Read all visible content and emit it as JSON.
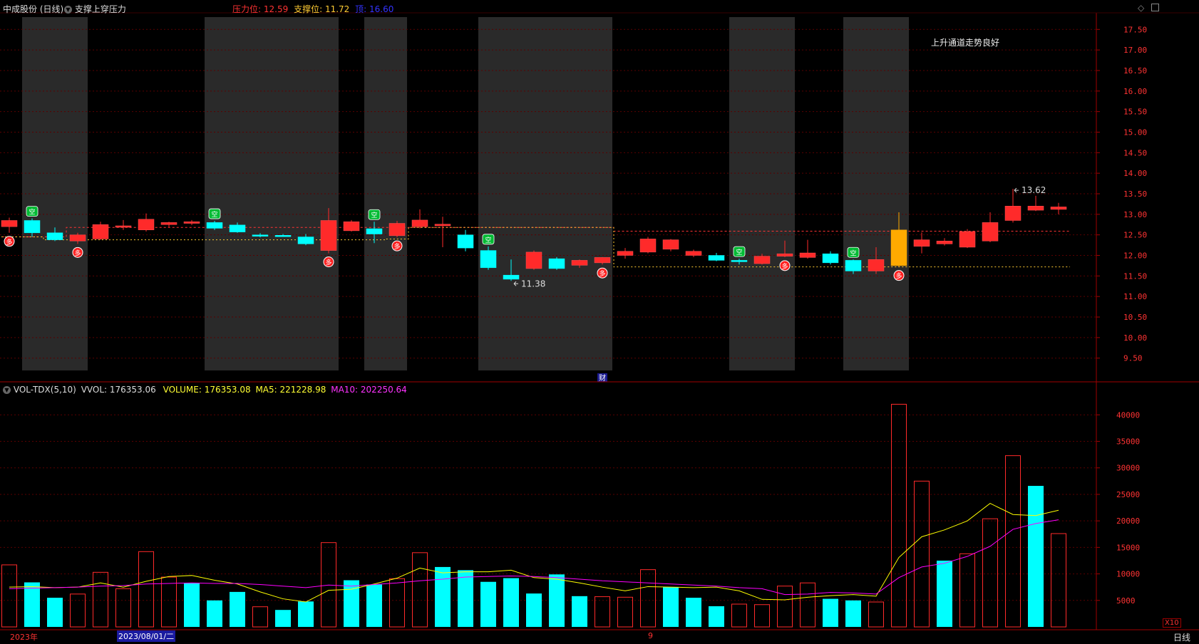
{
  "header": {
    "stock_name": "中成股份 (日线)",
    "indicator_name": "支撑上穿压力",
    "pressure_label": "压力位:",
    "pressure_value": "12.59",
    "support_label": "支撑位:",
    "support_value": "11.72",
    "top_label": "顶:",
    "top_value": "16.60",
    "channel_note": "上升通道走势良好"
  },
  "volume_header": {
    "indicator": "VOL-TDX(5,10)",
    "vvol": "VVOL: 176353.06",
    "volume": "VOLUME: 176353.08",
    "ma5": "MA5: 221228.98",
    "ma10": "MA10: 202250.64"
  },
  "footer": {
    "year_label": "2023年",
    "date_label": "2023/08/01/二",
    "month_label": "9",
    "scale_label": "X10",
    "period_label": "日线"
  },
  "colors": {
    "up": "#ff2a2a",
    "down": "#00ffff",
    "highlight": "#ffaa00",
    "ma5": "#ffff00",
    "ma10": "#ff00ff",
    "shade": "#2a2a2a",
    "axis": "#a00000",
    "pressure_color": "#ff3333",
    "support_color": "#ffcc33",
    "top_color": "#3333ff"
  },
  "chart_data": [
    {
      "type": "candlestick",
      "title": "中成股份 (日线)",
      "ylim": [
        9.2,
        17.8
      ],
      "y_ticks": [
        "9.50",
        "10.00",
        "10.50",
        "11.00",
        "11.50",
        "12.00",
        "12.50",
        "13.00",
        "13.50",
        "14.00",
        "14.50",
        "15.00",
        "15.50",
        "16.00",
        "16.50",
        "17.00",
        "17.50"
      ],
      "candles": [
        {
          "o": 12.7,
          "h": 12.92,
          "l": 12.55,
          "c": 12.85
        },
        {
          "o": 12.85,
          "h": 12.9,
          "l": 12.45,
          "c": 12.55
        },
        {
          "o": 12.55,
          "h": 12.68,
          "l": 12.35,
          "c": 12.38
        },
        {
          "o": 12.35,
          "h": 12.55,
          "l": 12.28,
          "c": 12.5
        },
        {
          "o": 12.4,
          "h": 12.82,
          "l": 12.38,
          "c": 12.75
        },
        {
          "o": 12.7,
          "h": 12.86,
          "l": 12.62,
          "c": 12.72
        },
        {
          "o": 12.62,
          "h": 13.02,
          "l": 12.58,
          "c": 12.88
        },
        {
          "o": 12.75,
          "h": 12.82,
          "l": 12.68,
          "c": 12.8
        },
        {
          "o": 12.78,
          "h": 12.86,
          "l": 12.74,
          "c": 12.82
        },
        {
          "o": 12.8,
          "h": 12.84,
          "l": 12.62,
          "c": 12.66
        },
        {
          "o": 12.74,
          "h": 12.8,
          "l": 12.55,
          "c": 12.57
        },
        {
          "o": 12.5,
          "h": 12.54,
          "l": 12.44,
          "c": 12.47
        },
        {
          "o": 12.49,
          "h": 12.52,
          "l": 12.45,
          "c": 12.47
        },
        {
          "o": 12.45,
          "h": 12.52,
          "l": 12.25,
          "c": 12.28
        },
        {
          "o": 12.12,
          "h": 13.15,
          "l": 12.05,
          "c": 12.85
        },
        {
          "o": 12.6,
          "h": 12.86,
          "l": 12.58,
          "c": 12.82
        },
        {
          "o": 12.65,
          "h": 12.82,
          "l": 12.3,
          "c": 12.52
        },
        {
          "o": 12.48,
          "h": 12.84,
          "l": 12.44,
          "c": 12.78
        },
        {
          "o": 12.7,
          "h": 13.12,
          "l": 12.66,
          "c": 12.86
        },
        {
          "o": 12.72,
          "h": 12.94,
          "l": 12.2,
          "c": 12.76
        },
        {
          "o": 12.5,
          "h": 12.62,
          "l": 12.1,
          "c": 12.18
        },
        {
          "o": 12.12,
          "h": 12.22,
          "l": 11.65,
          "c": 11.7
        },
        {
          "o": 11.52,
          "h": 11.9,
          "l": 11.38,
          "c": 11.42
        },
        {
          "o": 11.68,
          "h": 12.12,
          "l": 11.65,
          "c": 12.08
        },
        {
          "o": 11.92,
          "h": 11.96,
          "l": 11.65,
          "c": 11.68
        },
        {
          "o": 11.76,
          "h": 11.9,
          "l": 11.7,
          "c": 11.88
        },
        {
          "o": 11.82,
          "h": 11.96,
          "l": 11.78,
          "c": 11.95
        },
        {
          "o": 12.0,
          "h": 12.18,
          "l": 11.92,
          "c": 12.1
        },
        {
          "o": 12.08,
          "h": 12.45,
          "l": 12.05,
          "c": 12.4
        },
        {
          "o": 12.15,
          "h": 12.4,
          "l": 12.1,
          "c": 12.38
        },
        {
          "o": 12.0,
          "h": 12.14,
          "l": 11.96,
          "c": 12.1
        },
        {
          "o": 12.0,
          "h": 12.06,
          "l": 11.86,
          "c": 11.88
        },
        {
          "o": 11.88,
          "h": 11.92,
          "l": 11.78,
          "c": 11.85
        },
        {
          "o": 11.8,
          "h": 12.04,
          "l": 11.78,
          "c": 11.98
        },
        {
          "o": 11.98,
          "h": 12.36,
          "l": 11.96,
          "c": 12.04
        },
        {
          "o": 11.95,
          "h": 12.38,
          "l": 11.92,
          "c": 12.06
        },
        {
          "o": 12.04,
          "h": 12.1,
          "l": 11.78,
          "c": 11.82
        },
        {
          "o": 11.88,
          "h": 11.9,
          "l": 11.55,
          "c": 11.62
        },
        {
          "o": 11.62,
          "h": 12.2,
          "l": 11.55,
          "c": 11.9
        },
        {
          "o": 11.75,
          "h": 13.05,
          "l": 11.72,
          "c": 12.62
        },
        {
          "o": 12.22,
          "h": 12.56,
          "l": 12.05,
          "c": 12.38
        },
        {
          "o": 12.28,
          "h": 12.42,
          "l": 12.24,
          "c": 12.35
        },
        {
          "o": 12.2,
          "h": 12.64,
          "l": 12.18,
          "c": 12.58
        },
        {
          "o": 12.35,
          "h": 13.05,
          "l": 12.32,
          "c": 12.8
        },
        {
          "o": 12.85,
          "h": 13.62,
          "l": 12.8,
          "c": 13.2
        },
        {
          "o": 13.1,
          "h": 13.45,
          "l": 13.08,
          "c": 13.2
        },
        {
          "o": 13.12,
          "h": 13.28,
          "l": 13.0,
          "c": 13.18
        }
      ],
      "highlight_index": 39,
      "up_markers": [
        0,
        3,
        14,
        17,
        26,
        34,
        39
      ],
      "up_marker_text": "多",
      "down_markers": [
        1,
        9,
        16,
        21,
        32,
        37
      ],
      "down_marker_text": "空",
      "finance_marker": {
        "index": 26,
        "text": "财"
      },
      "pressure_line": [
        12.45,
        12.45,
        12.45,
        12.68,
        12.68,
        12.68,
        12.68,
        12.68,
        12.68,
        12.68,
        12.68,
        12.68,
        12.68,
        12.68,
        12.68,
        12.68,
        12.68,
        12.68,
        12.68,
        12.68,
        12.68,
        12.68,
        12.68,
        12.68,
        12.68,
        12.68,
        12.68,
        12.59,
        12.59,
        12.59,
        12.59,
        12.59,
        12.59,
        12.59,
        12.59,
        12.59,
        12.59,
        12.59,
        12.59,
        12.59,
        12.59,
        12.59,
        12.59,
        12.59,
        12.59,
        12.59,
        12.59
      ],
      "support_line": [
        12.45,
        12.45,
        12.38,
        12.38,
        12.38,
        12.38,
        12.38,
        12.38,
        12.38,
        12.38,
        12.38,
        12.38,
        12.38,
        12.38,
        12.38,
        12.38,
        12.38,
        12.4,
        12.68,
        12.68,
        12.68,
        12.68,
        12.68,
        12.68,
        12.68,
        12.68,
        12.68,
        11.72,
        11.72,
        11.72,
        11.72,
        11.72,
        11.72,
        11.72,
        11.72,
        11.72,
        11.72,
        11.72,
        11.72,
        11.72,
        11.72,
        11.72,
        11.72,
        11.72,
        11.72,
        11.72,
        11.72
      ],
      "shaded_ranges": [
        [
          1,
          3
        ],
        [
          9,
          14
        ],
        [
          16,
          17
        ],
        [
          21,
          26
        ],
        [
          32,
          34
        ],
        [
          37,
          39
        ]
      ],
      "annotations": [
        {
          "index": 22,
          "value": 11.38,
          "text": "11.38"
        },
        {
          "index": 44,
          "value": 13.62,
          "text": "13.62"
        }
      ]
    },
    {
      "type": "bar",
      "title": "VOL-TDX(5,10)",
      "ylim": [
        0,
        43000
      ],
      "y_ticks": [
        "5000",
        "10000",
        "15000",
        "20000",
        "25000",
        "30000",
        "35000",
        "40000"
      ],
      "values": [
        11700,
        8400,
        5500,
        6200,
        10300,
        7200,
        14200,
        9400,
        8300,
        5000,
        6600,
        3800,
        3200,
        4800,
        15900,
        8800,
        8000,
        9100,
        14000,
        11300,
        10700,
        8500,
        9200,
        6300,
        9900,
        5800,
        5700,
        5600,
        10800,
        7500,
        5500,
        3900,
        4300,
        4200,
        7700,
        8300,
        5300,
        5000,
        4700,
        42000,
        27500,
        12500,
        13800,
        20400,
        32300,
        26600,
        17600
      ],
      "series": [
        {
          "name": "MA5",
          "values": [
            7500,
            7600,
            7400,
            7500,
            8300,
            7500,
            8600,
            9500,
            9700,
            8800,
            8100,
            6600,
            5300,
            4700,
            6900,
            7100,
            8100,
            9200,
            11100,
            10200,
            10400,
            10400,
            10700,
            9300,
            9000,
            8300,
            7500,
            6800,
            7600,
            7500,
            7400,
            7500,
            6800,
            5200,
            5100,
            5600,
            5900,
            6100,
            5800,
            13100,
            17000,
            18300,
            20000,
            23300,
            21200,
            21000,
            22000
          ]
        },
        {
          "name": "MA10",
          "values": [
            7200,
            7300,
            7400,
            7500,
            7700,
            7800,
            8100,
            8200,
            8300,
            8200,
            8200,
            8000,
            7700,
            7400,
            7900,
            7700,
            8000,
            8300,
            8700,
            9000,
            9400,
            9500,
            9600,
            9500,
            9300,
            9000,
            8700,
            8500,
            8300,
            8100,
            7900,
            7700,
            7400,
            7200,
            6100,
            6200,
            6500,
            6400,
            6200,
            9300,
            11300,
            12000,
            13300,
            15200,
            18400,
            19500,
            20200
          ]
        }
      ],
      "colored_down_indices": [
        1,
        2,
        8,
        9,
        10,
        12,
        13,
        15,
        16,
        19,
        20,
        21,
        22,
        23,
        24,
        25,
        29,
        30,
        31,
        36,
        37,
        41,
        45
      ]
    }
  ]
}
